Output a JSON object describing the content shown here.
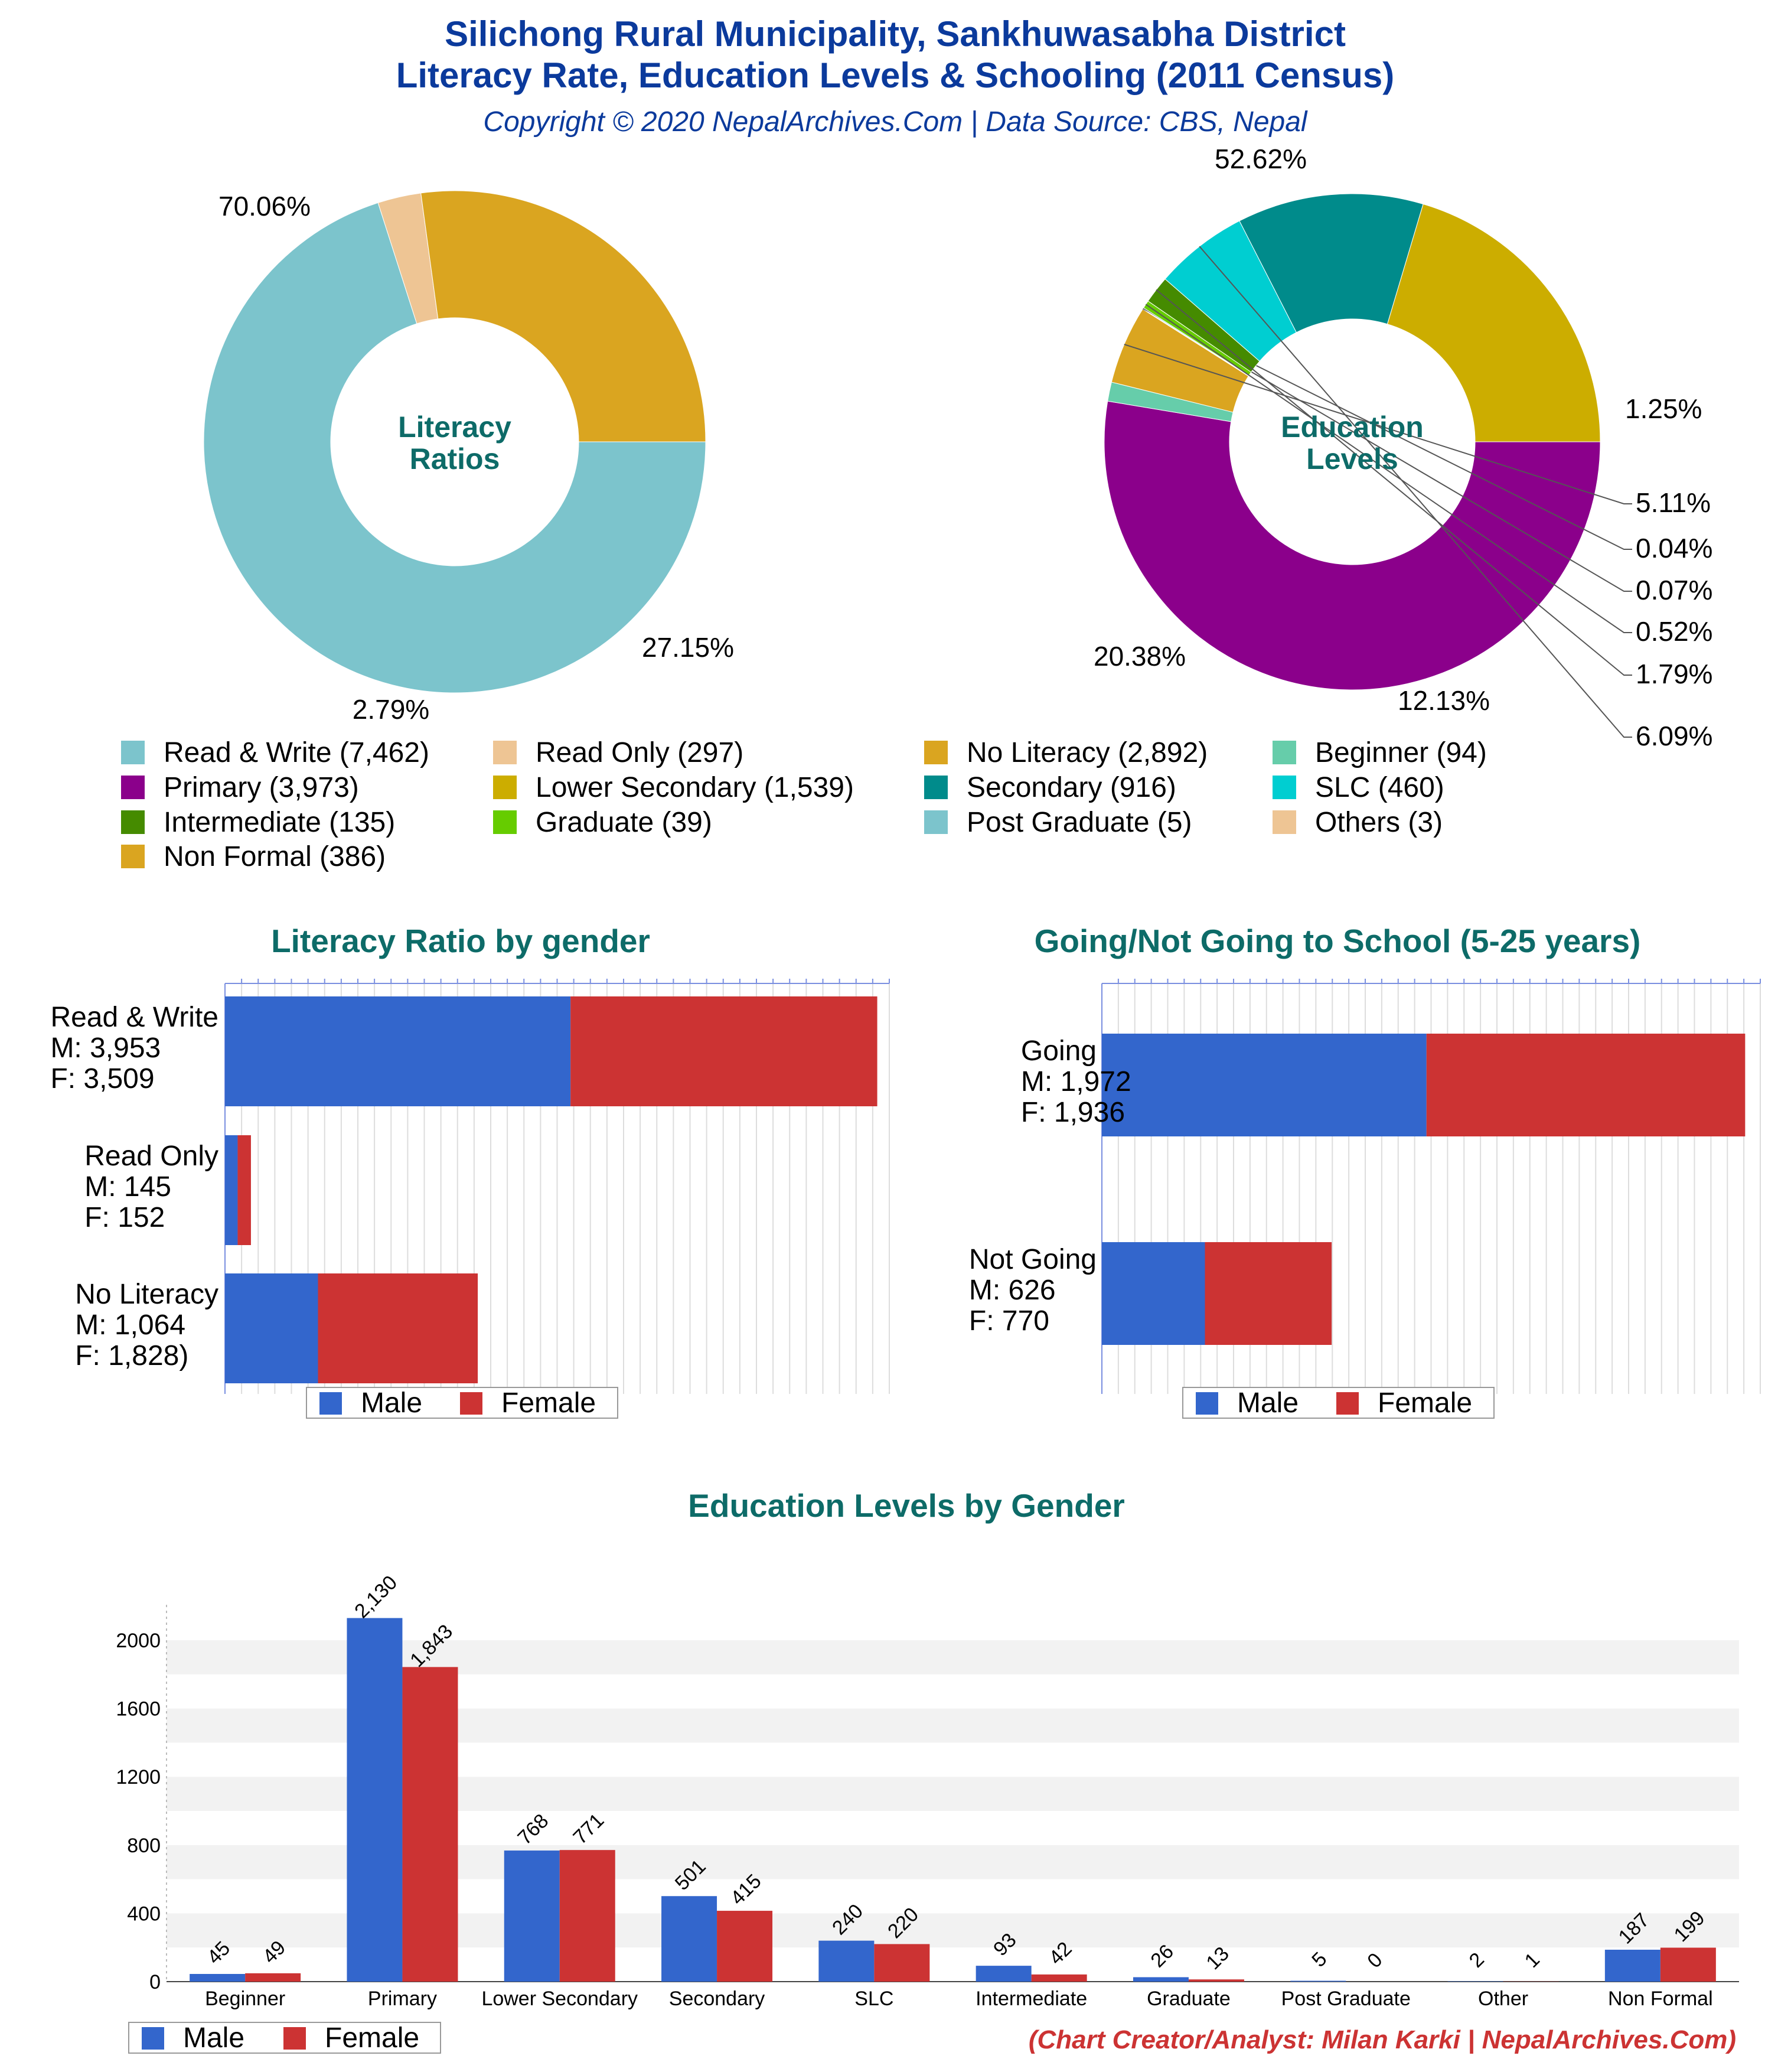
{
  "header": {
    "title_line1": "Silichong Rural Municipality, Sankhuwasabha District",
    "title_line2": "Literacy Rate, Education Levels & Schooling (2011 Census)",
    "subtitle": "Copyright © 2020 NepalArchives.Com | Data Source: CBS, Nepal"
  },
  "colors": {
    "male": "#3366cc",
    "female": "#cc3333"
  },
  "chart_data": [
    {
      "id": "literacy_donut",
      "type": "pie",
      "center_label": [
        "Literacy",
        "Ratios"
      ],
      "slices": [
        {
          "label": "Read & Write",
          "value": 7462,
          "pct": "70.06%",
          "color": "#7cc4cc"
        },
        {
          "label": "Read Only",
          "value": 297,
          "pct": "2.79%",
          "color": "#eec594"
        },
        {
          "label": "No Literacy",
          "value": 2892,
          "pct": "27.15%",
          "color": "#daa520"
        }
      ]
    },
    {
      "id": "education_donut",
      "type": "pie",
      "center_label": [
        "Education",
        "Levels"
      ],
      "slices": [
        {
          "label": "Primary",
          "value": 3973,
          "pct": "52.62%",
          "color": "#8b008b"
        },
        {
          "label": "Beginner",
          "value": 94,
          "pct": "1.25%",
          "color": "#66cdaa"
        },
        {
          "label": "Non Formal",
          "value": 386,
          "pct": "5.11%",
          "color": "#daa520"
        },
        {
          "label": "Others",
          "value": 3,
          "pct": "0.04%",
          "color": "#eec594"
        },
        {
          "label": "Post Graduate",
          "value": 5,
          "pct": "0.07%",
          "color": "#7cc4cc"
        },
        {
          "label": "Graduate",
          "value": 39,
          "pct": "0.52%",
          "color": "#66cc00"
        },
        {
          "label": "Intermediate",
          "value": 135,
          "pct": "1.79%",
          "color": "#458b00"
        },
        {
          "label": "SLC",
          "value": 460,
          "pct": "6.09%",
          "color": "#00ced1"
        },
        {
          "label": "Secondary",
          "value": 916,
          "pct": "12.13%",
          "color": "#008b8b"
        },
        {
          "label": "Lower Secondary",
          "value": 1539,
          "pct": "20.38%",
          "color": "#ccad00"
        }
      ]
    },
    {
      "id": "literacy_by_gender",
      "type": "bar",
      "title": "Literacy Ratio by gender",
      "orientation": "horizontal",
      "stacked": true,
      "categories": [
        {
          "name": "Read & Write",
          "m_label": "M: 3,953",
          "f_label": "F: 3,509"
        },
        {
          "name": "Read Only",
          "m_label": "M: 145",
          "f_label": "F: 152"
        },
        {
          "name": "No Literacy",
          "m_label": "M: 1,064",
          "f_label": "F: 1,828)"
        }
      ],
      "series": [
        {
          "name": "Male",
          "values": [
            3953,
            145,
            1064
          ]
        },
        {
          "name": "Female",
          "values": [
            3509,
            152,
            1828
          ]
        }
      ],
      "xlim": [
        0,
        7600
      ],
      "grid": true,
      "legend": "bottom"
    },
    {
      "id": "school_by_gender",
      "type": "bar",
      "title": "Going/Not Going to School (5-25 years)",
      "orientation": "horizontal",
      "stacked": true,
      "categories": [
        {
          "name": "Going",
          "m_label": "M: 1,972",
          "f_label": "F: 1,936"
        },
        {
          "name": "Not Going",
          "m_label": "M: 626",
          "f_label": "F: 770"
        }
      ],
      "series": [
        {
          "name": "Male",
          "values": [
            1972,
            626
          ]
        },
        {
          "name": "Female",
          "values": [
            1936,
            770
          ]
        }
      ],
      "xlim": [
        0,
        4000
      ],
      "grid": true,
      "legend": "bottom"
    },
    {
      "id": "education_by_gender",
      "type": "bar",
      "title": "Education Levels by Gender",
      "categories": [
        "Beginner",
        "Primary",
        "Lower Secondary",
        "Secondary",
        "SLC",
        "Intermediate",
        "Graduate",
        "Post Graduate",
        "Other",
        "Non Formal"
      ],
      "series": [
        {
          "name": "Male",
          "values": [
            45,
            2130,
            768,
            501,
            240,
            93,
            26,
            5,
            2,
            187
          ],
          "labels": [
            "45",
            "2,130",
            "768",
            "501",
            "240",
            "93",
            "26",
            "5",
            "2",
            "187"
          ]
        },
        {
          "name": "Female",
          "values": [
            49,
            1843,
            771,
            415,
            220,
            42,
            13,
            0,
            1,
            199
          ],
          "labels": [
            "49",
            "1,843",
            "771",
            "415",
            "220",
            "42",
            "13",
            "0",
            "1",
            "199"
          ]
        }
      ],
      "yticks": [
        "0",
        "400",
        "800",
        "1200",
        "1600",
        "2000"
      ],
      "ylim": [
        0,
        2200
      ],
      "grid": true,
      "legend": "bottom-left"
    }
  ],
  "legend_main": [
    "Read & Write (7,462)",
    "Read Only (297)",
    "No Literacy (2,892)",
    "Beginner (94)",
    "Primary (3,973)",
    "Lower Secondary (1,539)",
    "Secondary (916)",
    "SLC (460)",
    "Intermediate (135)",
    "Graduate (39)",
    "Post Graduate (5)",
    "Others (3)",
    "Non Formal (386)"
  ],
  "legend_labels": {
    "male": "Male",
    "female": "Female"
  },
  "credit": "(Chart Creator/Analyst: Milan Karki | NepalArchives.Com)"
}
